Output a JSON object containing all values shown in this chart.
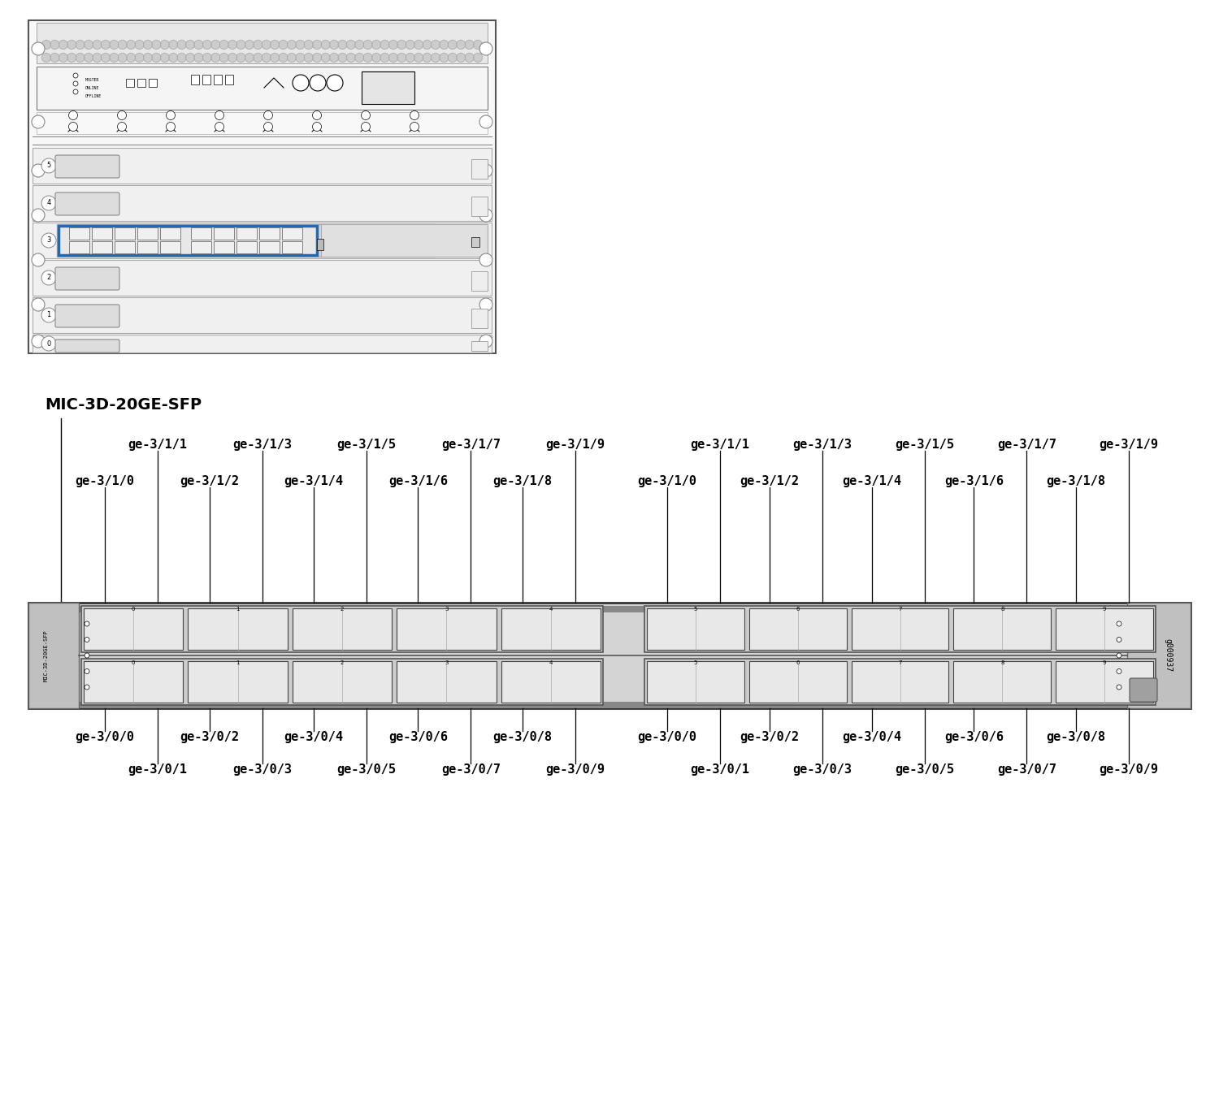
{
  "mic_label": "MIC-3D-20GE-SFP",
  "top_ports_odd": [
    "ge-3/1/1",
    "ge-3/1/3",
    "ge-3/1/5",
    "ge-3/1/7",
    "ge-3/1/9"
  ],
  "top_ports_even": [
    "ge-3/1/0",
    "ge-3/1/2",
    "ge-3/1/4",
    "ge-3/1/6",
    "ge-3/1/8"
  ],
  "bot_ports_even": [
    "ge-3/0/0",
    "ge-3/0/2",
    "ge-3/0/4",
    "ge-3/0/6",
    "ge-3/0/8"
  ],
  "bot_ports_odd": [
    "ge-3/0/1",
    "ge-3/0/3",
    "ge-3/0/5",
    "ge-3/0/7",
    "ge-3/0/9"
  ],
  "bg_color": "#ffffff",
  "chassis_fill": "#f8f8f8",
  "chassis_edge": "#555555",
  "slot_fill": "#eeeeee",
  "slot_edge": "#777777",
  "mic_fill": "#e0e0e0",
  "port_fill": "#f2f2f2",
  "highlight_blue": "#1a6bbf",
  "text_color": "#000000",
  "vent_fill": "#e8e8e8"
}
